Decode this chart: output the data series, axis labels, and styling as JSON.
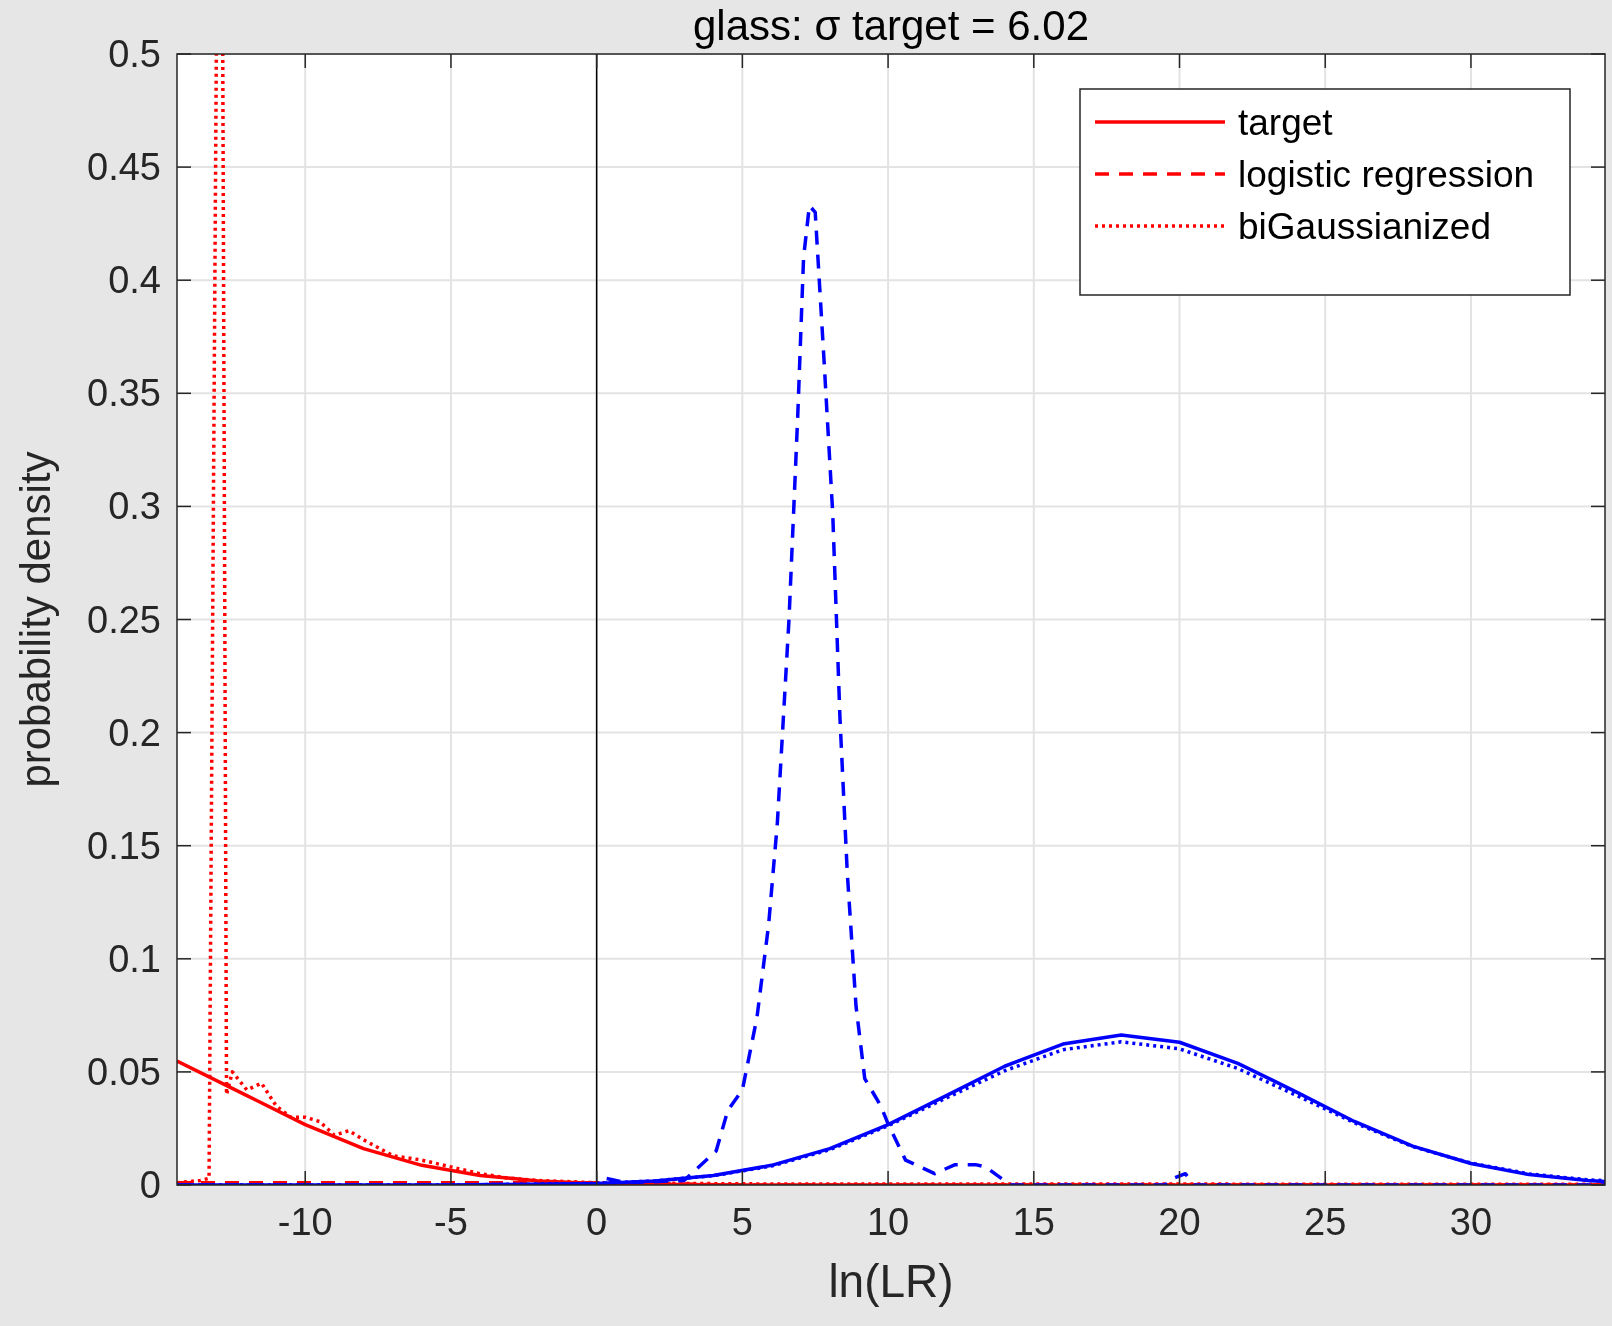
{
  "chart_data": {
    "type": "line",
    "title": "glass:  σ target = 6.02",
    "xlabel": "ln(LR)",
    "ylabel": "probability density",
    "xlim": [
      -14.4,
      34.6
    ],
    "ylim": [
      0,
      0.5
    ],
    "xticks": [
      -10,
      -5,
      0,
      5,
      10,
      15,
      20,
      25,
      30
    ],
    "yticks": [
      0,
      0.05,
      0.1,
      0.15,
      0.2,
      0.25,
      0.3,
      0.35,
      0.4,
      0.45,
      0.5
    ],
    "grid": true,
    "legend": "top right",
    "ref_lines": [
      {
        "axis": "x",
        "value": 0,
        "color": "#000000"
      }
    ],
    "series": [
      {
        "name": "target",
        "color": "#ff0000",
        "line_style": "solid",
        "x": [
          -14.4,
          -12,
          -10,
          -8,
          -6,
          -4,
          -2,
          0,
          2,
          5,
          34.6
        ],
        "values": [
          0.0548,
          0.0395,
          0.0267,
          0.0161,
          0.0087,
          0.0042,
          0.0018,
          0.0007,
          0.0003,
          0,
          0
        ]
      },
      {
        "name": "logistic regression",
        "color": "#ff0000",
        "line_style": "dashed",
        "x": [
          -14.4,
          -5,
          0,
          5,
          34.6
        ],
        "values": [
          0.001,
          0.001,
          0.001,
          0,
          0
        ]
      },
      {
        "name": "biGaussianized",
        "color": "#ff0000",
        "line_style": "dotted",
        "x": [
          -14.4,
          -13.6,
          -13.3,
          -13.05,
          -12.83,
          -12.7,
          -12.5,
          -12,
          -11.5,
          -11,
          -10.5,
          -10,
          -9.5,
          -9,
          -8.5,
          -8,
          -7,
          -6,
          -5,
          -4,
          -3,
          -2,
          0,
          5,
          34.6
        ],
        "values": [
          0.001,
          0.002,
          0.003,
          0.5,
          0.5,
          0.04,
          0.05,
          0.042,
          0.045,
          0.035,
          0.03,
          0.03,
          0.028,
          0.022,
          0.024,
          0.02,
          0.013,
          0.011,
          0.008,
          0.005,
          0.003,
          0.002,
          0.001,
          0.0005,
          0.0003
        ]
      },
      {
        "color": "#0000ff",
        "line_style": "solid",
        "x": [
          -14.4,
          -5,
          0,
          2,
          4,
          6,
          8,
          10,
          12,
          14,
          16,
          18,
          20,
          22,
          24,
          26,
          28,
          30,
          32,
          34,
          34.6
        ],
        "values": [
          0,
          0,
          0.0007,
          0.0018,
          0.0042,
          0.0087,
          0.0161,
          0.0267,
          0.0395,
          0.0525,
          0.0623,
          0.0663,
          0.0631,
          0.0538,
          0.0412,
          0.0281,
          0.0172,
          0.0095,
          0.0046,
          0.002,
          0.0016
        ]
      },
      {
        "color": "#0000ff",
        "line_style": "dashed",
        "x": [
          -14.4,
          0,
          0.3,
          1,
          3,
          4.1,
          4.5,
          5,
          5.5,
          5.9,
          6.2,
          6.6,
          6.9,
          7.1,
          7.3,
          7.5,
          7.8,
          8.1,
          8.35,
          8.6,
          8.9,
          9.2,
          9.75,
          10,
          10.6,
          11.6,
          12.3,
          13,
          13.35,
          14.2,
          19.5,
          19.8,
          20.2,
          20.5,
          34.6
        ],
        "values": [
          0,
          0,
          0.003,
          0.001,
          0.002,
          0.015,
          0.033,
          0.042,
          0.074,
          0.115,
          0.16,
          0.25,
          0.34,
          0.41,
          0.433,
          0.43,
          0.365,
          0.297,
          0.206,
          0.138,
          0.079,
          0.047,
          0.035,
          0.027,
          0.011,
          0.005,
          0.009,
          0.009,
          0.008,
          0,
          0,
          0.003,
          0.005,
          0,
          0
        ]
      },
      {
        "color": "#0000ff",
        "line_style": "dotted",
        "x": [
          -14.4,
          -5,
          0,
          2,
          4,
          6,
          8,
          10,
          12,
          14,
          16,
          18,
          20,
          22,
          24,
          26,
          28,
          30,
          32,
          34,
          34.6
        ],
        "values": [
          0,
          0,
          0.0007,
          0.0018,
          0.0041,
          0.0084,
          0.0156,
          0.0262,
          0.0385,
          0.0505,
          0.0598,
          0.0633,
          0.0602,
          0.0515,
          0.0397,
          0.0275,
          0.017,
          0.0097,
          0.0049,
          0.0023,
          0.0019
        ]
      }
    ]
  }
}
